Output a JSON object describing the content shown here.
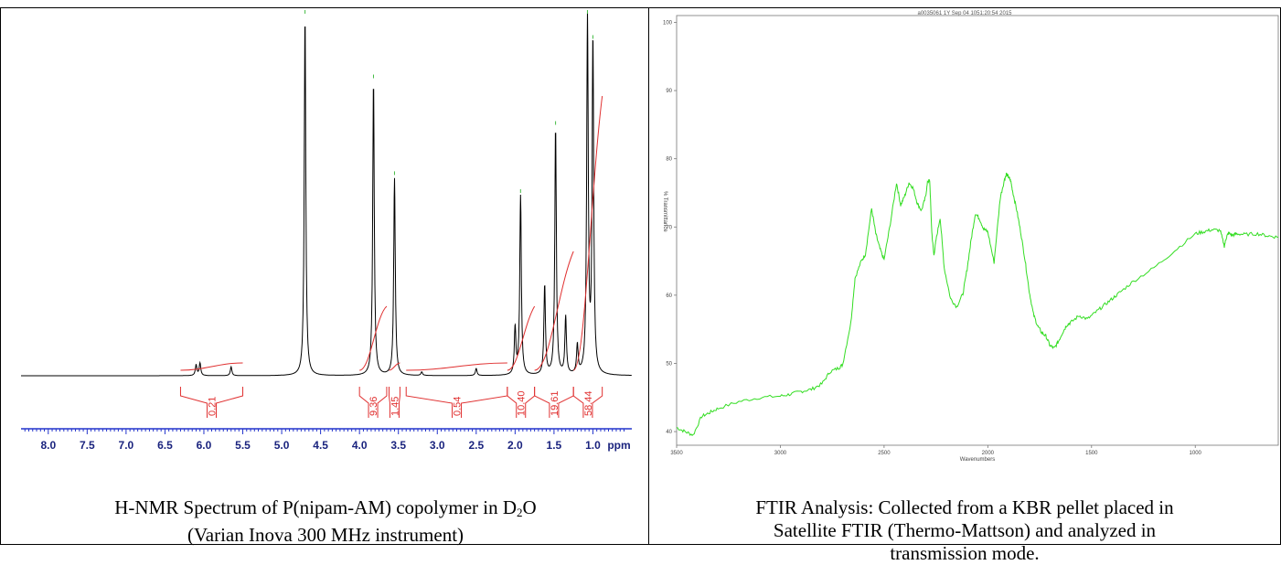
{
  "top_fragment": ",",
  "nmr": {
    "caption_line1_pre": "H-NMR Spectrum of P(nipam-AM) copolymer in D",
    "caption_line1_sub": "2",
    "caption_line1_post": "O",
    "caption_line2": "(Varian Inova 300 MHz instrument)",
    "axis_unit": "ppm",
    "line_color": "#000000",
    "integral_color": "#e03030",
    "axis_color": "#2233cc"
  },
  "ftir": {
    "header": "a0035061 1Y Sep 04 1051:20:54 2015",
    "ylabel": "% Transmittance",
    "xlabel": "Wavenumbers",
    "caption_line1": "FTIR Analysis: Collected from a KBR pellet placed in",
    "caption_line2": "Satellite FTIR (Thermo-Mattson) and analyzed in",
    "caption_line3": "transmission mode.",
    "line_color": "#33dd22"
  },
  "chart_data": [
    {
      "type": "line",
      "xlabel": "ppm",
      "xlim": [
        8.35,
        0.5
      ],
      "x_ticks": [
        "8.0",
        "7.5",
        "7.0",
        "6.5",
        "6.0",
        "5.5",
        "5.0",
        "4.5",
        "4.0",
        "3.5",
        "3.0",
        "2.5",
        "2.0",
        "1.5",
        "1.0"
      ],
      "peaks": [
        {
          "ppm": 6.1,
          "height": 0.03
        },
        {
          "ppm": 6.05,
          "height": 0.035
        },
        {
          "ppm": 5.65,
          "height": 0.025
        },
        {
          "ppm": 4.7,
          "height": 1.0
        },
        {
          "ppm": 3.82,
          "height": 0.82
        },
        {
          "ppm": 3.55,
          "height": 0.55
        },
        {
          "ppm": 3.2,
          "height": 0.01
        },
        {
          "ppm": 2.5,
          "height": 0.02
        },
        {
          "ppm": 2.0,
          "height": 0.13
        },
        {
          "ppm": 1.93,
          "height": 0.5
        },
        {
          "ppm": 1.62,
          "height": 0.25
        },
        {
          "ppm": 1.48,
          "height": 0.69
        },
        {
          "ppm": 1.35,
          "height": 0.16
        },
        {
          "ppm": 1.2,
          "height": 0.08
        },
        {
          "ppm": 1.07,
          "height": 1.0
        },
        {
          "ppm": 1.0,
          "height": 0.93
        }
      ],
      "integrals": [
        {
          "label": "0.21",
          "from": 6.3,
          "to": 5.5
        },
        {
          "label": "9.36",
          "from": 4.0,
          "to": 3.65
        },
        {
          "label": "1.45",
          "from": 3.62,
          "to": 3.48
        },
        {
          "label": "0.54",
          "from": 3.4,
          "to": 2.1
        },
        {
          "label": "10.40",
          "from": 2.1,
          "to": 1.75
        },
        {
          "label": "19.61",
          "from": 1.75,
          "to": 1.25
        },
        {
          "label": "58.44",
          "from": 1.25,
          "to": 0.88
        }
      ]
    },
    {
      "type": "line",
      "xlabel": "Wavenumbers",
      "ylabel": "% Transmittance",
      "xlim": [
        3500,
        600
      ],
      "ylim": [
        38,
        101
      ],
      "x_ticks": [
        "3500",
        "3000",
        "2500",
        "2000",
        "1500",
        "1000"
      ],
      "y_ticks": [
        "100",
        "90",
        "80",
        "70",
        "60",
        "50",
        "40"
      ],
      "series": [
        {
          "x": [
            3500,
            3460,
            3420,
            3380,
            3340,
            3300,
            3200,
            3100,
            3000,
            2950,
            2900,
            2850,
            2800,
            2760,
            2720,
            2700,
            2660,
            2640,
            2610,
            2590,
            2560,
            2540,
            2520,
            2500,
            2470,
            2440,
            2420,
            2400,
            2380,
            2360,
            2340,
            2320,
            2300,
            2290,
            2280,
            2270,
            2260,
            2250,
            2230,
            2210,
            2180,
            2150,
            2120,
            2100,
            2080,
            2060,
            2040,
            2020,
            2000,
            1970,
            1940,
            1920,
            1910,
            1900,
            1890,
            1880,
            1860,
            1840,
            1820,
            1800,
            1780,
            1760,
            1740,
            1720,
            1700,
            1680,
            1660,
            1640,
            1620,
            1600,
            1560,
            1520,
            1480,
            1440,
            1400,
            1360,
            1300,
            1200,
            1100,
            1000,
            960,
            920,
            880,
            860,
            850,
            840,
            820,
            800,
            760,
            700,
            650,
            600
          ],
          "y": [
            40.6,
            40,
            39.5,
            42.2,
            42.8,
            43.4,
            44.4,
            45,
            45.2,
            45.5,
            45.9,
            46.2,
            47,
            48.8,
            49.3,
            49.8,
            56,
            62.5,
            65,
            66,
            72.7,
            69,
            66.8,
            65.2,
            70.5,
            76.5,
            73.2,
            74.6,
            76.5,
            75.7,
            73.5,
            72.4,
            74.4,
            76.7,
            76.8,
            69.2,
            65.8,
            68,
            71.4,
            64,
            59.5,
            58.3,
            60.2,
            63.8,
            68.2,
            72,
            71.2,
            69.7,
            69.3,
            64.8,
            74.3,
            76.9,
            77.8,
            77.3,
            76.8,
            75.2,
            72.4,
            69,
            65,
            60.5,
            57.2,
            55.5,
            54.5,
            54,
            52.6,
            52.2,
            53.2,
            54.5,
            55.6,
            56,
            57,
            56.5,
            57.5,
            58.5,
            59.5,
            60.5,
            62,
            64,
            66.5,
            69,
            69.3,
            69.6,
            69.5,
            67.2,
            68.5,
            69.1,
            68.8,
            69,
            68.9,
            69,
            68.7,
            68.5
          ]
        }
      ]
    }
  ]
}
